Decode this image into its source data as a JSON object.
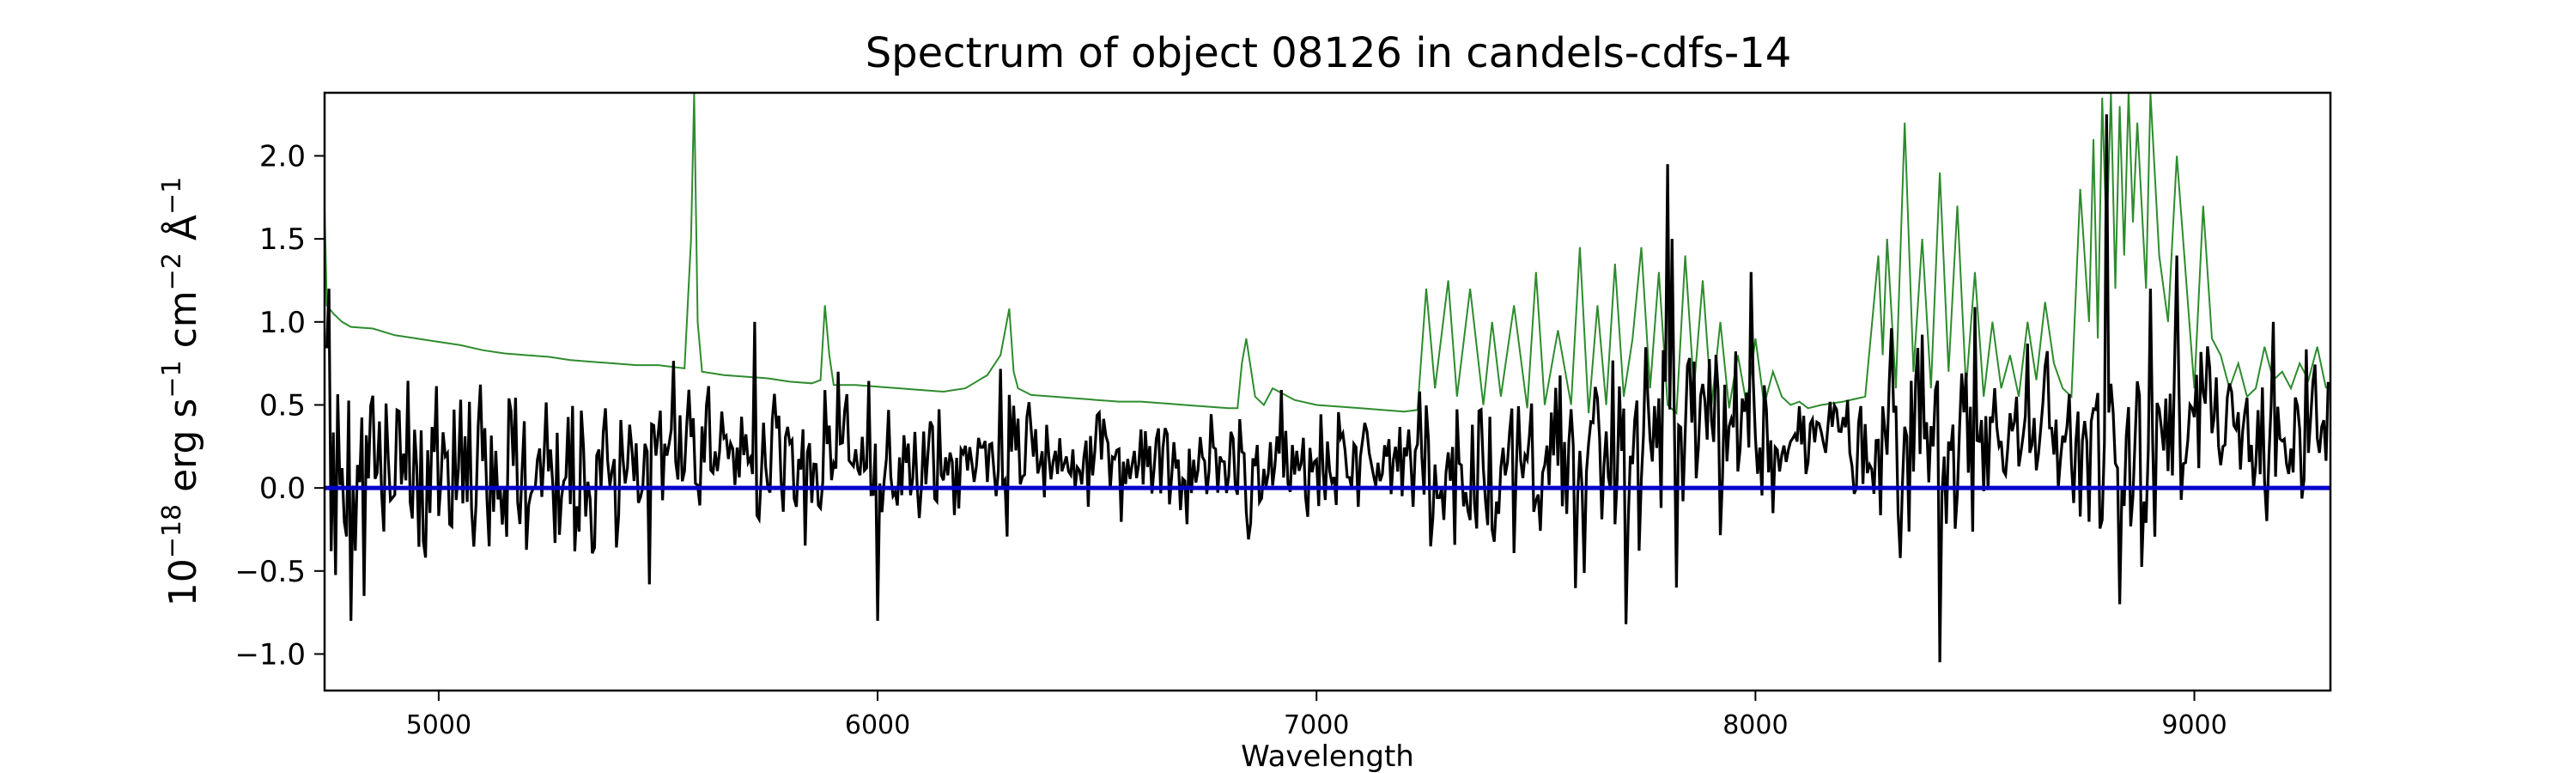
{
  "chart_data": {
    "type": "line",
    "title": "Spectrum of object 08126 in candels-cdfs-14",
    "xlabel": "Wavelength",
    "ylabel_parts": {
      "base": "10",
      "exp18": "−18",
      "erg": " erg s",
      "exp1a": "−1",
      "cm": " cm",
      "exp2": "−2",
      "ang": " Å",
      "exp1b": "−1"
    },
    "xlim": [
      4740,
      9310
    ],
    "ylim": [
      -1.22,
      2.38
    ],
    "xticks": [
      {
        "value": 5000,
        "label": "5000"
      },
      {
        "value": 6000,
        "label": "6000"
      },
      {
        "value": 7000,
        "label": "7000"
      },
      {
        "value": 8000,
        "label": "8000"
      },
      {
        "value": 9000,
        "label": "9000"
      }
    ],
    "yticks": [
      {
        "value": -1.0,
        "label": "−1.0"
      },
      {
        "value": -0.5,
        "label": "−0.5"
      },
      {
        "value": 0.0,
        "label": "0.0"
      },
      {
        "value": 0.5,
        "label": "0.5"
      },
      {
        "value": 1.0,
        "label": "1.0"
      },
      {
        "value": 1.5,
        "label": "1.5"
      },
      {
        "value": 2.0,
        "label": "2.0"
      }
    ],
    "grid": false,
    "series": [
      {
        "role": "uncertainty",
        "color": "#2e8b2e",
        "x": [
          4740,
          4745,
          4760,
          4780,
          4800,
          4850,
          4900,
          4950,
          5000,
          5050,
          5100,
          5150,
          5200,
          5250,
          5300,
          5350,
          5400,
          5450,
          5500,
          5560,
          5575,
          5582,
          5590,
          5600,
          5650,
          5700,
          5750,
          5800,
          5850,
          5870,
          5880,
          5890,
          5900,
          5950,
          6000,
          6050,
          6100,
          6150,
          6200,
          6250,
          6280,
          6300,
          6310,
          6320,
          6350,
          6400,
          6450,
          6500,
          6550,
          6600,
          6650,
          6700,
          6750,
          6800,
          6820,
          6830,
          6840,
          6860,
          6880,
          6900,
          6950,
          7000,
          7050,
          7100,
          7150,
          7200,
          7230,
          7250,
          7270,
          7300,
          7320,
          7350,
          7380,
          7400,
          7420,
          7450,
          7480,
          7500,
          7520,
          7550,
          7580,
          7600,
          7620,
          7640,
          7660,
          7680,
          7700,
          7720,
          7740,
          7760,
          7780,
          7800,
          7820,
          7840,
          7860,
          7880,
          7900,
          7920,
          7940,
          7960,
          7980,
          8000,
          8020,
          8040,
          8060,
          8080,
          8100,
          8120,
          8150,
          8200,
          8250,
          8280,
          8290,
          8300,
          8320,
          8340,
          8360,
          8380,
          8400,
          8420,
          8440,
          8460,
          8480,
          8500,
          8520,
          8540,
          8560,
          8580,
          8600,
          8620,
          8640,
          8660,
          8680,
          8700,
          8720,
          8740,
          8760,
          8770,
          8780,
          8790,
          8800,
          8810,
          8820,
          8830,
          8840,
          8850,
          8860,
          8870,
          8880,
          8890,
          8900,
          8920,
          8940,
          8960,
          8980,
          9000,
          9020,
          9040,
          9060,
          9080,
          9100,
          9120,
          9140,
          9160,
          9180,
          9200,
          9220,
          9240,
          9260,
          9280,
          9300
        ],
        "y": [
          1.7,
          1.1,
          1.05,
          1.0,
          0.97,
          0.96,
          0.92,
          0.9,
          0.88,
          0.86,
          0.83,
          0.81,
          0.8,
          0.79,
          0.77,
          0.76,
          0.75,
          0.74,
          0.74,
          0.72,
          1.5,
          2.38,
          1.0,
          0.7,
          0.68,
          0.67,
          0.66,
          0.64,
          0.63,
          0.65,
          1.1,
          0.8,
          0.62,
          0.62,
          0.61,
          0.6,
          0.59,
          0.58,
          0.6,
          0.68,
          0.8,
          1.08,
          0.7,
          0.6,
          0.56,
          0.55,
          0.54,
          0.53,
          0.52,
          0.52,
          0.51,
          0.5,
          0.49,
          0.48,
          0.48,
          0.75,
          0.9,
          0.55,
          0.5,
          0.6,
          0.53,
          0.5,
          0.49,
          0.48,
          0.47,
          0.46,
          0.47,
          1.2,
          0.6,
          1.25,
          0.55,
          1.2,
          0.5,
          1.0,
          0.55,
          1.1,
          0.48,
          1.3,
          0.5,
          0.95,
          0.5,
          1.45,
          0.45,
          1.1,
          0.5,
          1.35,
          0.55,
          0.9,
          1.45,
          0.6,
          1.3,
          0.5,
          0.45,
          1.4,
          0.6,
          1.25,
          0.5,
          1.0,
          0.48,
          0.8,
          0.5,
          0.9,
          0.5,
          0.7,
          0.55,
          0.5,
          0.52,
          0.48,
          0.5,
          0.52,
          0.55,
          1.4,
          0.8,
          1.5,
          0.6,
          2.2,
          0.7,
          1.5,
          0.6,
          1.9,
          0.7,
          1.7,
          0.6,
          1.3,
          0.55,
          1.0,
          0.6,
          0.8,
          0.55,
          1.0,
          0.65,
          1.12,
          0.75,
          0.6,
          0.55,
          1.8,
          1.0,
          2.1,
          0.9,
          2.35,
          1.5,
          2.38,
          1.2,
          2.3,
          1.4,
          2.38,
          1.6,
          2.2,
          1.7,
          1.2,
          2.38,
          1.4,
          1.0,
          2.0,
          1.3,
          0.6,
          1.7,
          0.9,
          0.8,
          0.6,
          0.75,
          0.55,
          0.6,
          0.85,
          0.65,
          0.7,
          0.6,
          0.75,
          0.65,
          0.85,
          0.6
        ]
      },
      {
        "role": "spectrum",
        "color": "#000000",
        "seed": 8126,
        "x_step": 5,
        "x_range": [
          4745,
          9305
        ],
        "features": [
          {
            "x": 4750,
            "y": 1.2
          },
          {
            "x": 4800,
            "y": -0.8
          },
          {
            "x": 4830,
            "y": -0.65
          },
          {
            "x": 5480,
            "y": -0.58
          },
          {
            "x": 5720,
            "y": 1.0
          },
          {
            "x": 5910,
            "y": 0.7
          },
          {
            "x": 6000,
            "y": -0.8
          },
          {
            "x": 7705,
            "y": -0.82
          },
          {
            "x": 7800,
            "y": 1.95
          },
          {
            "x": 7810,
            "y": 1.5
          },
          {
            "x": 7820,
            "y": -0.6
          },
          {
            "x": 7990,
            "y": 1.3
          },
          {
            "x": 8420,
            "y": -1.05
          },
          {
            "x": 8800,
            "y": 2.25
          },
          {
            "x": 8830,
            "y": -0.7
          },
          {
            "x": 8900,
            "y": 1.2
          },
          {
            "x": 8960,
            "y": 1.4
          },
          {
            "x": 9180,
            "y": 1.0
          }
        ]
      },
      {
        "role": "zero-line",
        "color": "#0000cc",
        "x": [
          4740,
          9310
        ],
        "y": [
          0,
          0
        ]
      }
    ]
  }
}
